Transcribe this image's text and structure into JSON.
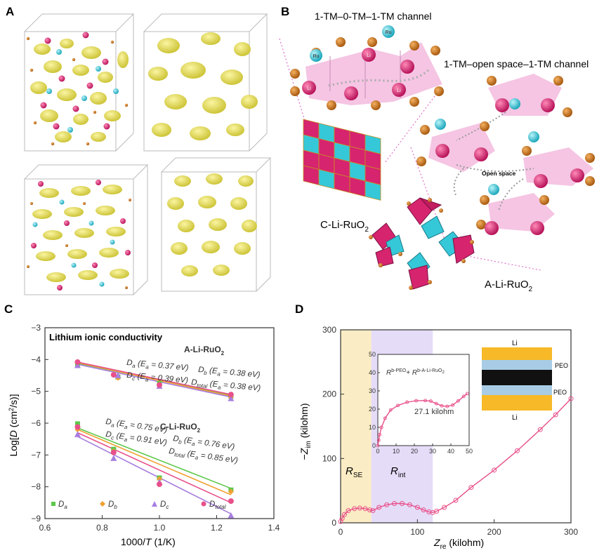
{
  "panels": {
    "a": {
      "letter": "A"
    },
    "b": {
      "letter": "B",
      "channel_closed": "1-TM–0-TM–1-TM channel",
      "channel_open": "1-TM–open space–1-TM channel",
      "open_space": "Open space",
      "c_label": "C-Li-RuO",
      "a_label": "A-Li-RuO",
      "sub2": "2",
      "ru": "Ru",
      "li": "Li"
    },
    "c": {
      "letter": "C"
    },
    "d": {
      "letter": "D"
    }
  },
  "colors": {
    "yellow": "#e8e04a",
    "magenta": "#d6246e",
    "cyan": "#35c8d8",
    "orange": "#d4781a",
    "pink_poly": "#f2b6dc",
    "green": "#5cc84a",
    "orange_fit": "#f0a030",
    "violet": "#a77ee0",
    "pink": "#e8508a",
    "se_band": "#faecc4",
    "int_band": "#e5dcf8"
  },
  "chart_data": [
    {
      "type": "scatter",
      "panel": "C",
      "title": "Lithium ionic conductivity",
      "xlabel": "1000/T (1/K)",
      "ylabel": "Log[D (cm²/s)]",
      "xlim": [
        0.6,
        1.4
      ],
      "ylim": [
        -9,
        -3
      ],
      "x_ticks": [
        "0.6",
        "0.8",
        "1.0",
        "1.2",
        "1.4"
      ],
      "y_ticks": [
        "-3",
        "-4",
        "-5",
        "-6",
        "-7",
        "-8",
        "-9"
      ],
      "group_labels": [
        "A-Li-RuO2",
        "C-Li-RuO2"
      ],
      "annotations": {
        "A-Li-RuO2": [
          "D_a (E_a = 0.37 eV)",
          "D_b (E_a = 0.38 eV)",
          "D_c (E_a = 0.39 eV)",
          "D_total (E_a = 0.38 eV)"
        ],
        "C-Li-RuO2": [
          "D_a (E_a = 0.75 eV)",
          "D_b (E_a = 0.76 eV)",
          "D_c (E_a = 0.91 eV)",
          "D_total (E_a = 0.85 eV)"
        ]
      },
      "legend": [
        "D_a",
        "D_b",
        "D_c",
        "D_total"
      ],
      "series": [
        {
          "name": "A-Li-RuO2 D_a",
          "marker": "square",
          "color": "#5cc84a",
          "x": [
            0.714,
            0.855,
            1.0,
            1.25
          ],
          "y": [
            -4.15,
            -4.55,
            -4.75,
            -5.15
          ],
          "fit": [
            [
              0.714,
              -4.12
            ],
            [
              1.25,
              -5.12
            ]
          ]
        },
        {
          "name": "A-Li-RuO2 D_b",
          "marker": "diamond",
          "color": "#f0a030",
          "x": [
            0.714,
            0.855,
            1.0,
            1.25
          ],
          "y": [
            -4.1,
            -4.58,
            -4.78,
            -5.2
          ],
          "fit": [
            [
              0.714,
              -4.1
            ],
            [
              1.25,
              -5.15
            ]
          ]
        },
        {
          "name": "A-Li-RuO2 D_c",
          "marker": "triangle",
          "color": "#a77ee0",
          "x": [
            0.714,
            0.855,
            1.0,
            1.25
          ],
          "y": [
            -4.18,
            -4.5,
            -4.83,
            -5.22
          ],
          "fit": [
            [
              0.714,
              -4.15
            ],
            [
              1.25,
              -5.18
            ]
          ]
        },
        {
          "name": "A-Li-RuO2 D_total",
          "marker": "circle",
          "color": "#e8508a",
          "x": [
            0.714,
            0.84,
            1.0,
            1.25
          ],
          "y": [
            -4.08,
            -4.48,
            -4.8,
            -5.1
          ],
          "fit": [
            [
              0.714,
              -4.08
            ],
            [
              1.25,
              -5.1
            ]
          ]
        },
        {
          "name": "C-Li-RuO2 D_a",
          "marker": "square",
          "color": "#5cc84a",
          "x": [
            0.714,
            0.84,
            1.0,
            1.25
          ],
          "y": [
            -6.02,
            -6.82,
            -7.72,
            -8.1
          ],
          "fit": [
            [
              0.714,
              -6.15
            ],
            [
              1.25,
              -8.05
            ]
          ]
        },
        {
          "name": "C-Li-RuO2 D_b",
          "marker": "diamond",
          "color": "#f0a030",
          "x": [
            0.714,
            0.84,
            1.0,
            1.25
          ],
          "y": [
            -6.2,
            -6.88,
            -7.75,
            -8.15
          ],
          "fit": [
            [
              0.714,
              -6.2
            ],
            [
              1.25,
              -8.25
            ]
          ]
        },
        {
          "name": "C-Li-RuO2 D_c",
          "marker": "triangle",
          "color": "#a77ee0",
          "x": [
            0.714,
            0.84,
            1.0,
            1.25
          ],
          "y": [
            -6.35,
            -7.1,
            -7.85,
            -8.9
          ],
          "fit": [
            [
              0.714,
              -6.42
            ],
            [
              1.25,
              -8.85
            ]
          ]
        },
        {
          "name": "C-Li-RuO2 D_total",
          "marker": "circle",
          "color": "#e8508a",
          "x": [
            0.714,
            0.84,
            1.0,
            1.25
          ],
          "y": [
            -6.12,
            -6.92,
            -7.92,
            -8.45
          ],
          "fit": [
            [
              0.714,
              -6.3
            ],
            [
              1.25,
              -8.5
            ]
          ]
        }
      ]
    },
    {
      "type": "line",
      "panel": "D",
      "xlabel": "Z_re (kilohm)",
      "ylabel": "-Z_im (kilohm)",
      "xlim": [
        0,
        300
      ],
      "ylim": [
        0,
        300
      ],
      "x_ticks": [
        "0",
        "100",
        "200",
        "300"
      ],
      "y_ticks": [
        "0",
        "100",
        "200",
        "300"
      ],
      "regions": [
        {
          "label": "R_SE",
          "x_range": [
            0,
            40
          ],
          "color": "#faecc4"
        },
        {
          "label": "R_int",
          "x_range": [
            40,
            120
          ],
          "color": "#e5dcf8"
        }
      ],
      "series": [
        {
          "name": "Nyquist",
          "color": "#e8508a",
          "x": [
            0,
            2,
            5,
            10,
            18,
            25,
            32,
            38,
            42,
            50,
            60,
            70,
            80,
            90,
            100,
            108,
            115,
            120,
            125,
            135,
            150,
            170,
            200,
            230,
            260,
            280,
            300
          ],
          "y": [
            2,
            7,
            13,
            19,
            22,
            23,
            22,
            20,
            19,
            24,
            28,
            30,
            30,
            28,
            24,
            20,
            17,
            16,
            18,
            24,
            35,
            55,
            82,
            112,
            145,
            168,
            193
          ]
        }
      ],
      "inset": {
        "xlim": [
          0,
          50
        ],
        "ylim": [
          0,
          50
        ],
        "x_ticks": [
          "0",
          "10",
          "20",
          "30",
          "40",
          "50"
        ],
        "y_ticks": [
          "0",
          "10",
          "20",
          "30",
          "40",
          "50"
        ],
        "label": "R_b-PEO + R_b-A-Li-RuO2",
        "annotation": "27.1 kilohm",
        "series": [
          {
            "name": "inset",
            "color": "#e8508a",
            "x": [
              0,
              0.5,
              1,
              2,
              4,
              7,
              11,
              16,
              21,
              26,
              29,
              32,
              35,
              38,
              41,
              44,
              47,
              49
            ],
            "y": [
              0,
              3,
              6,
              10,
              15,
              19.5,
              22,
              23.8,
              24.6,
              24.7,
              24.4,
              23,
              21.8,
              21.5,
              22.2,
              24.5,
              27,
              28.5
            ]
          }
        ]
      },
      "cell": {
        "top": "Li",
        "bottom": "Li",
        "layers": [
          "PEO",
          "PEO"
        ]
      }
    }
  ]
}
